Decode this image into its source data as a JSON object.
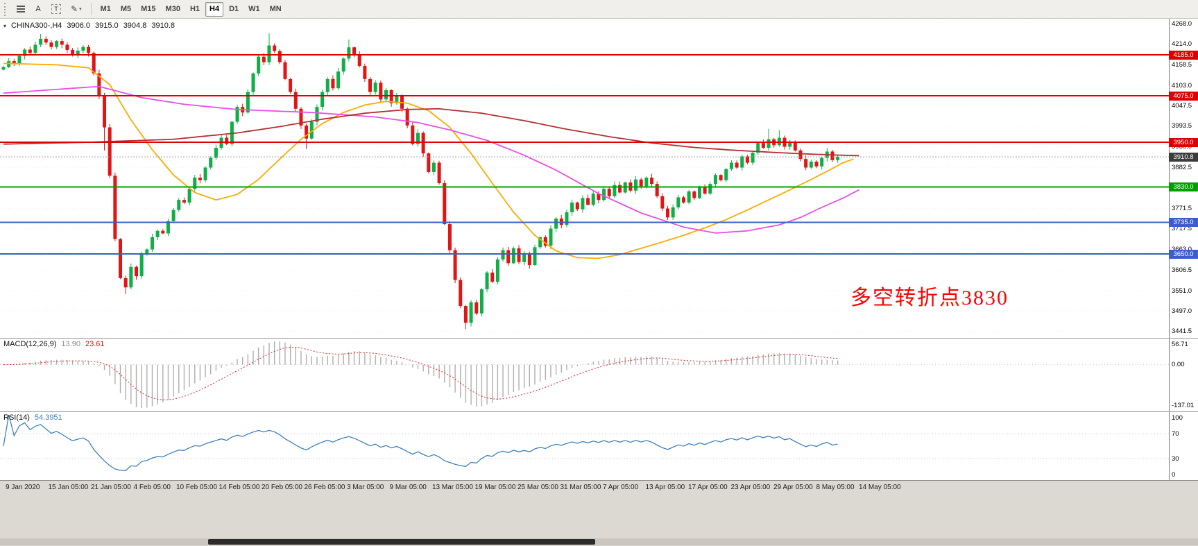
{
  "toolbar": {
    "timeframes": [
      "M1",
      "M5",
      "M15",
      "M30",
      "H1",
      "H4",
      "D1",
      "W1",
      "MN"
    ],
    "active": "H4",
    "buttons": {
      "a_label": "A",
      "t_label": "T"
    }
  },
  "chart_data": {
    "type": "candlestick",
    "header_symbol": "CHINA300-,H4",
    "ohlc": {
      "open": "3906.0",
      "high": "3915.0",
      "low": "3904.8",
      "close": "3910.8"
    },
    "first_open": 4145,
    "closes": [
      4152,
      4168,
      4160,
      4182,
      4199,
      4190,
      4212,
      4228,
      4218,
      4206,
      4222,
      4212,
      4198,
      4184,
      4196,
      4206,
      4190,
      4135,
      4075,
      3990,
      3860,
      3690,
      3585,
      3560,
      3615,
      3590,
      3648,
      3662,
      3695,
      3712,
      3705,
      3738,
      3768,
      3795,
      3788,
      3825,
      3855,
      3848,
      3882,
      3908,
      3935,
      3962,
      3945,
      4005,
      4045,
      4030,
      4085,
      4135,
      4180,
      4165,
      4210,
      4195,
      4165,
      4120,
      4085,
      4040,
      3995,
      3960,
      4005,
      4045,
      4085,
      4120,
      4095,
      4140,
      4175,
      4205,
      4185,
      4155,
      4120,
      4085,
      4110,
      4065,
      4090,
      4055,
      4075,
      4040,
      3995,
      3945,
      3975,
      3920,
      3870,
      3895,
      3840,
      3730,
      3660,
      3580,
      3510,
      3465,
      3520,
      3490,
      3555,
      3600,
      3575,
      3635,
      3660,
      3625,
      3665,
      3628,
      3652,
      3620,
      3668,
      3695,
      3672,
      3718,
      3745,
      3728,
      3762,
      3788,
      3770,
      3800,
      3782,
      3812,
      3795,
      3825,
      3805,
      3835,
      3815,
      3842,
      3820,
      3850,
      3832,
      3855,
      3838,
      3805,
      3772,
      3748,
      3775,
      3802,
      3788,
      3818,
      3800,
      3828,
      3812,
      3838,
      3862,
      3848,
      3878,
      3895,
      3882,
      3912,
      3895,
      3922,
      3948,
      3935,
      3958,
      3942,
      3962,
      3938,
      3952,
      3928,
      3905,
      3882,
      3898,
      3885,
      3908,
      3925,
      3902,
      3910.8
    ],
    "extremes": {
      "7": {
        "high": 4241
      },
      "19": {
        "low": 3928
      },
      "23": {
        "low": 3542
      },
      "50": {
        "high": 4243
      },
      "57": {
        "low": 3932
      },
      "65": {
        "high": 4226
      },
      "87": {
        "low": 3448
      },
      "144": {
        "high": 3986
      },
      "146": {
        "high": 3982
      }
    },
    "moving_averages": [
      {
        "name": "fast",
        "color": "#ffaa00",
        "anchors": [
          [
            0,
            4162
          ],
          [
            10,
            4158
          ],
          [
            16,
            4150
          ],
          [
            20,
            4105
          ],
          [
            24,
            4010
          ],
          [
            28,
            3930
          ],
          [
            32,
            3862
          ],
          [
            36,
            3815
          ],
          [
            40,
            3795
          ],
          [
            44,
            3810
          ],
          [
            48,
            3850
          ],
          [
            52,
            3905
          ],
          [
            56,
            3958
          ],
          [
            60,
            4000
          ],
          [
            64,
            4030
          ],
          [
            68,
            4050
          ],
          [
            72,
            4060
          ],
          [
            76,
            4055
          ],
          [
            80,
            4035
          ],
          [
            84,
            3990
          ],
          [
            88,
            3920
          ],
          [
            92,
            3840
          ],
          [
            96,
            3762
          ],
          [
            100,
            3700
          ],
          [
            104,
            3658
          ],
          [
            108,
            3640
          ],
          [
            112,
            3638
          ],
          [
            116,
            3648
          ],
          [
            120,
            3665
          ],
          [
            124,
            3682
          ],
          [
            128,
            3700
          ],
          [
            132,
            3720
          ],
          [
            136,
            3742
          ],
          [
            140,
            3768
          ],
          [
            144,
            3795
          ],
          [
            148,
            3822
          ],
          [
            152,
            3850
          ],
          [
            155,
            3872
          ],
          [
            158,
            3895
          ],
          [
            160,
            3905
          ]
        ]
      },
      {
        "name": "medium",
        "color": "#e84fe8",
        "anchors": [
          [
            0,
            4082
          ],
          [
            10,
            4092
          ],
          [
            18,
            4100
          ],
          [
            26,
            4070
          ],
          [
            34,
            4052
          ],
          [
            44,
            4038
          ],
          [
            58,
            4030
          ],
          [
            70,
            4018
          ],
          [
            78,
            4003
          ],
          [
            84,
            3983
          ],
          [
            91,
            3955
          ],
          [
            98,
            3915
          ],
          [
            104,
            3875
          ],
          [
            112,
            3812
          ],
          [
            120,
            3760
          ],
          [
            128,
            3722
          ],
          [
            134,
            3706
          ],
          [
            140,
            3712
          ],
          [
            146,
            3728
          ],
          [
            150,
            3748
          ],
          [
            154,
            3775
          ],
          [
            158,
            3800
          ],
          [
            161,
            3822
          ]
        ]
      },
      {
        "name": "slow",
        "color": "#b43030",
        "anchors": [
          [
            0,
            3945
          ],
          [
            16,
            3950
          ],
          [
            32,
            3958
          ],
          [
            44,
            3975
          ],
          [
            52,
            3992
          ],
          [
            60,
            4012
          ],
          [
            68,
            4028
          ],
          [
            76,
            4038
          ],
          [
            82,
            4040
          ],
          [
            90,
            4028
          ],
          [
            98,
            4008
          ],
          [
            106,
            3985
          ],
          [
            114,
            3965
          ],
          [
            122,
            3948
          ],
          [
            130,
            3936
          ],
          [
            138,
            3928
          ],
          [
            146,
            3922
          ],
          [
            152,
            3918
          ],
          [
            158,
            3915
          ],
          [
            161,
            3914
          ]
        ]
      }
    ],
    "levels": [
      {
        "price": 4185.0,
        "label": "4185.0",
        "color": "#dd0000"
      },
      {
        "price": 4075.0,
        "label": "4075.0",
        "color": "#dd0000"
      },
      {
        "price": 3950.0,
        "label": "3950.0",
        "color": "#dd0000"
      },
      {
        "price": 3830.0,
        "label": "3830.0",
        "color": "#00a000"
      },
      {
        "price": 3735.0,
        "label": "3735.0",
        "color": "#3a5fc8"
      },
      {
        "price": 3650.0,
        "label": "3650.0",
        "color": "#3a5fc8"
      }
    ],
    "current_price": 3910.8,
    "current_price_label": "3910.8",
    "y_ticks": [
      "4268.0",
      "4214.0",
      "4158.5",
      "4103.0",
      "4047.5",
      "3993.5",
      "3938.0",
      "3882.5",
      "3771.5",
      "3717.5",
      "3663.0",
      "3606.5",
      "3551.0",
      "3497.0",
      "3441.5"
    ],
    "x_labels": [
      "9 Jan 2020",
      "15 Jan 05:00",
      "21 Jan 05:00",
      "4 Feb 05:00",
      "10 Feb 05:00",
      "14 Feb 05:00",
      "20 Feb 05:00",
      "26 Feb 05:00",
      "3 Mar 05:00",
      "9 Mar 05:00",
      "13 Mar 05:00",
      "19 Mar 05:00",
      "25 Mar 05:00",
      "31 Mar 05:00",
      "7 Apr 05:00",
      "13 Apr 05:00",
      "17 Apr 05:00",
      "23 Apr 05:00",
      "29 Apr 05:00",
      "8 May 05:00",
      "14 May 05:00"
    ],
    "indicators": [
      {
        "name": "MACD",
        "label": "MACD(12,26,9)",
        "values": [
          "13.90",
          "23.61"
        ],
        "axis": [
          "56.71",
          "0.00",
          "-137.01"
        ]
      },
      {
        "name": "RSI",
        "label": "RSI(14)",
        "value": "54.3951",
        "axis": [
          "100",
          "70",
          "30",
          "0"
        ]
      }
    ],
    "annotation": {
      "text": "多空转折点3830",
      "color": "#ff0000"
    },
    "colors": {
      "up": "#0fae47",
      "down": "#e01515",
      "macd_bar": "#b0aeab",
      "macd_signal": "#e03030",
      "rsi_line": "#3e80c0",
      "current_label_bg": "#3c3c3c"
    }
  }
}
